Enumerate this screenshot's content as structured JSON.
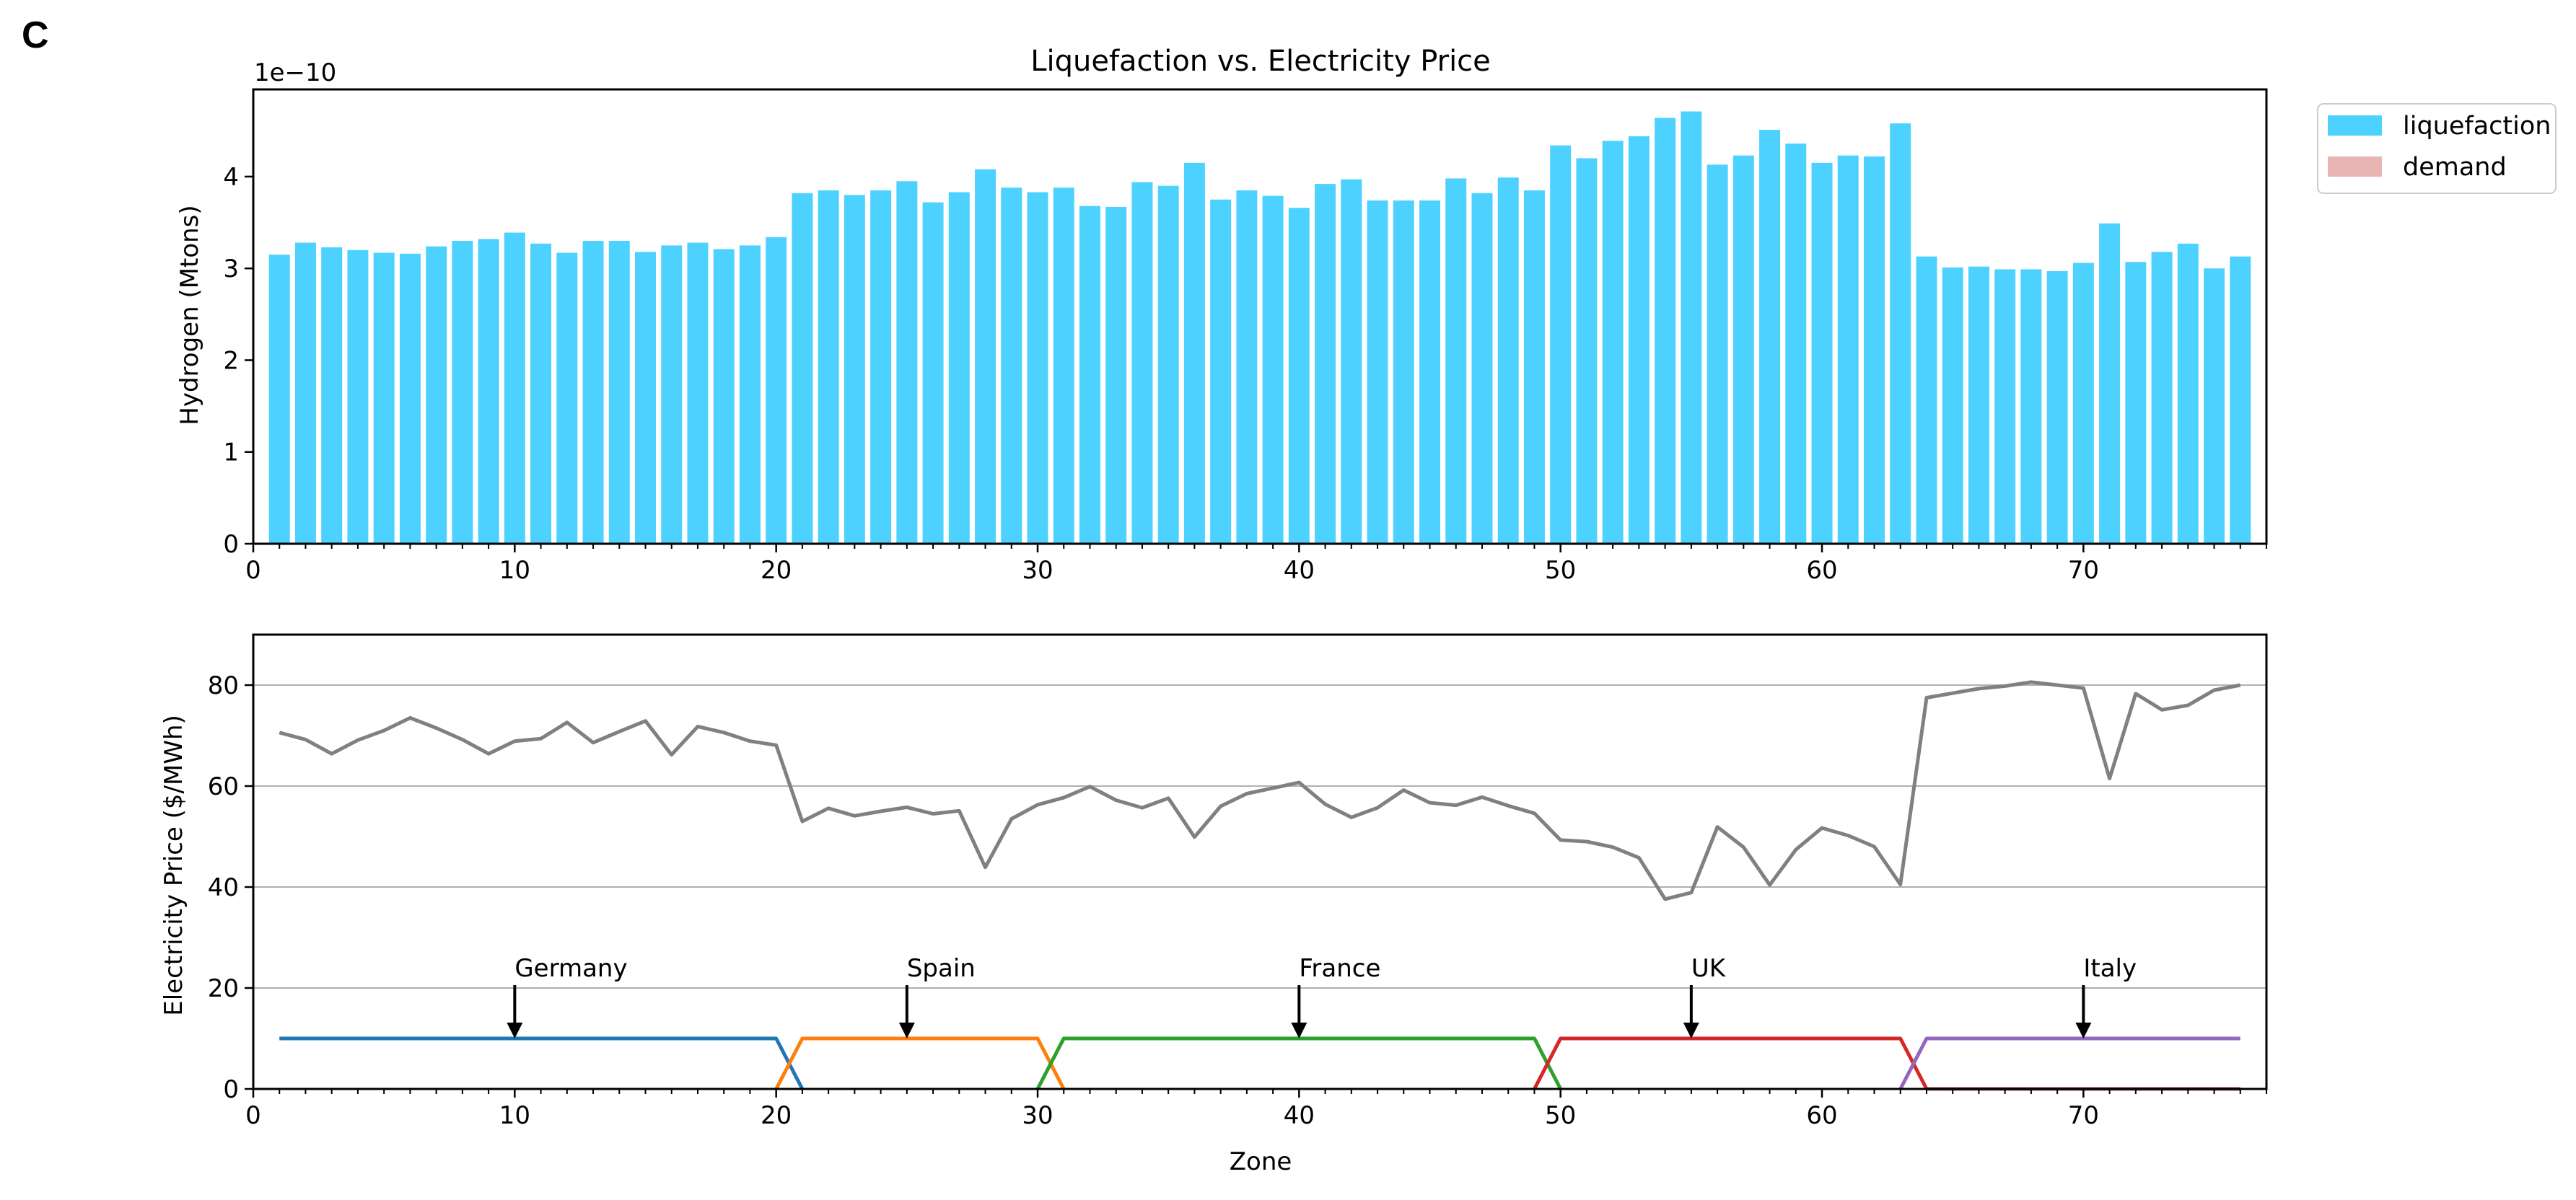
{
  "panel_label": "C",
  "chart_data": [
    {
      "type": "bar",
      "title": "Liquefaction vs. Electricity Price",
      "xlabel": "",
      "ylabel": "Hydrogen (Mtons)",
      "offset_text": "1e−10",
      "y_scale_factor": 1e-10,
      "xlim": [
        0,
        77
      ],
      "ylim": [
        0,
        4.95
      ],
      "xticks": [
        0,
        10,
        20,
        30,
        40,
        50,
        60,
        70
      ],
      "yticks": [
        0,
        1,
        2,
        3,
        4
      ],
      "grid": false,
      "legend_position": "outside upper-right",
      "legend": [
        {
          "label": "liquefaction",
          "color": "#4DD2FF"
        },
        {
          "label": "demand",
          "color": "#E8B4B4"
        }
      ],
      "x": [
        1,
        2,
        3,
        4,
        5,
        6,
        7,
        8,
        9,
        10,
        11,
        12,
        13,
        14,
        15,
        16,
        17,
        18,
        19,
        20,
        21,
        22,
        23,
        24,
        25,
        26,
        27,
        28,
        29,
        30,
        31,
        32,
        33,
        34,
        35,
        36,
        37,
        38,
        39,
        40,
        41,
        42,
        43,
        44,
        45,
        46,
        47,
        48,
        49,
        50,
        51,
        52,
        53,
        54,
        55,
        56,
        57,
        58,
        59,
        60,
        61,
        62,
        63,
        64,
        65,
        66,
        67,
        68,
        69,
        70,
        71,
        72,
        73,
        74,
        75,
        76
      ],
      "series": [
        {
          "name": "liquefaction",
          "color": "#4DD2FF",
          "values": [
            3.15,
            3.28,
            3.23,
            3.2,
            3.17,
            3.16,
            3.24,
            3.3,
            3.32,
            3.39,
            3.27,
            3.17,
            3.3,
            3.3,
            3.18,
            3.25,
            3.28,
            3.21,
            3.25,
            3.34,
            3.82,
            3.85,
            3.8,
            3.85,
            3.95,
            3.72,
            3.83,
            4.08,
            3.88,
            3.83,
            3.88,
            3.68,
            3.67,
            3.94,
            3.9,
            4.15,
            3.75,
            3.85,
            3.79,
            3.66,
            3.92,
            3.97,
            3.74,
            3.74,
            3.74,
            3.98,
            3.82,
            3.99,
            3.85,
            4.34,
            4.2,
            4.39,
            4.44,
            4.64,
            4.71,
            4.13,
            4.23,
            4.51,
            4.36,
            4.15,
            4.23,
            4.22,
            4.58,
            3.13,
            3.01,
            3.02,
            2.99,
            2.99,
            2.97,
            3.06,
            3.49,
            3.07,
            3.18,
            3.27,
            3.0,
            3.13
          ]
        },
        {
          "name": "demand",
          "color": "#E8B4B4",
          "values": [
            0,
            0,
            0,
            0,
            0,
            0,
            0,
            0,
            0,
            0,
            0,
            0,
            0,
            0,
            0,
            0,
            0,
            0,
            0,
            0,
            0,
            0,
            0,
            0,
            0,
            0,
            0,
            0,
            0,
            0,
            0,
            0,
            0,
            0,
            0,
            0,
            0,
            0,
            0,
            0,
            0,
            0,
            0,
            0,
            0,
            0,
            0,
            0,
            0,
            0,
            0,
            0,
            0,
            0,
            0,
            0,
            0,
            0,
            0,
            0,
            0,
            0,
            0,
            0,
            0,
            0,
            0,
            0,
            0,
            0,
            0,
            0,
            0,
            0,
            0,
            0
          ]
        }
      ]
    },
    {
      "type": "line",
      "title": "",
      "xlabel": "Zone",
      "ylabel": "Electricity Price ($/MWh)",
      "xlim": [
        0,
        77
      ],
      "ylim": [
        0,
        90
      ],
      "xticks": [
        0,
        10,
        20,
        30,
        40,
        50,
        60,
        70
      ],
      "yticks": [
        0,
        20,
        40,
        60,
        80
      ],
      "grid": "horizontal",
      "series": [
        {
          "name": "",
          "color": "#808080",
          "x": [
            1,
            2,
            3,
            4,
            5,
            6,
            7,
            8,
            9,
            10,
            11,
            12,
            13,
            14,
            15,
            16,
            17,
            18,
            19,
            20,
            21,
            22,
            23,
            24,
            25,
            26,
            27,
            28,
            29,
            30,
            31,
            32,
            33,
            34,
            35,
            36,
            37,
            38,
            39,
            40,
            41,
            42,
            43,
            44,
            45,
            46,
            47,
            48,
            49,
            50,
            51,
            52,
            53,
            54,
            55,
            56,
            57,
            58,
            59,
            60,
            61,
            62,
            63,
            64,
            65,
            66,
            67,
            68,
            69,
            70,
            71,
            72,
            73,
            74,
            75,
            76
          ],
          "values": [
            70.6,
            69.2,
            66.4,
            69.1,
            71.0,
            73.5,
            71.5,
            69.2,
            66.4,
            68.9,
            69.4,
            72.6,
            68.6,
            70.8,
            72.9,
            66.2,
            71.8,
            70.6,
            68.9,
            68.1,
            53.0,
            55.6,
            54.1,
            55.0,
            55.8,
            54.5,
            55.1,
            43.9,
            53.5,
            56.3,
            57.7,
            59.9,
            57.2,
            55.7,
            57.6,
            49.9,
            56.0,
            58.5,
            59.6,
            60.7,
            56.4,
            53.8,
            55.7,
            59.2,
            56.7,
            56.2,
            57.8,
            56.1,
            54.6,
            49.3,
            49.0,
            47.9,
            45.8,
            37.6,
            38.9,
            51.9,
            47.9,
            40.4,
            47.4,
            51.7,
            50.2,
            48.0,
            40.5,
            77.5,
            78.4,
            79.3,
            79.8,
            80.6,
            80.0,
            79.4,
            61.5,
            78.3,
            75.1,
            76.0,
            79.0,
            80.0
          ]
        },
        {
          "name": "",
          "color": "#1F77B4",
          "x": [
            1,
            20,
            21
          ],
          "values": [
            10,
            10,
            0
          ]
        },
        {
          "name": "",
          "color": "#FF7F0E",
          "x": [
            20,
            21,
            30,
            31
          ],
          "values": [
            0,
            10,
            10,
            0
          ]
        },
        {
          "name": "",
          "color": "#2CA02C",
          "x": [
            30,
            31,
            49,
            50
          ],
          "values": [
            0,
            10,
            10,
            0
          ]
        },
        {
          "name": "",
          "color": "#D62728",
          "x": [
            49,
            50,
            63,
            64
          ],
          "values": [
            0,
            10,
            10,
            0
          ]
        },
        {
          "name": "",
          "color": "#9467BD",
          "x": [
            63,
            64,
            76
          ],
          "values": [
            0,
            10,
            10
          ]
        },
        {
          "name": "",
          "color": "#8C564B",
          "x": [
            64,
            76
          ],
          "values": [
            0,
            0
          ]
        }
      ],
      "annotations": [
        {
          "text": "Germany",
          "x": 10,
          "y": 10,
          "text_y": 20
        },
        {
          "text": "Spain",
          "x": 25,
          "y": 10,
          "text_y": 20
        },
        {
          "text": "France",
          "x": 40,
          "y": 10,
          "text_y": 20
        },
        {
          "text": "UK",
          "x": 55,
          "y": 10,
          "text_y": 20
        },
        {
          "text": "Italy",
          "x": 70,
          "y": 10,
          "text_y": 20
        }
      ]
    }
  ]
}
